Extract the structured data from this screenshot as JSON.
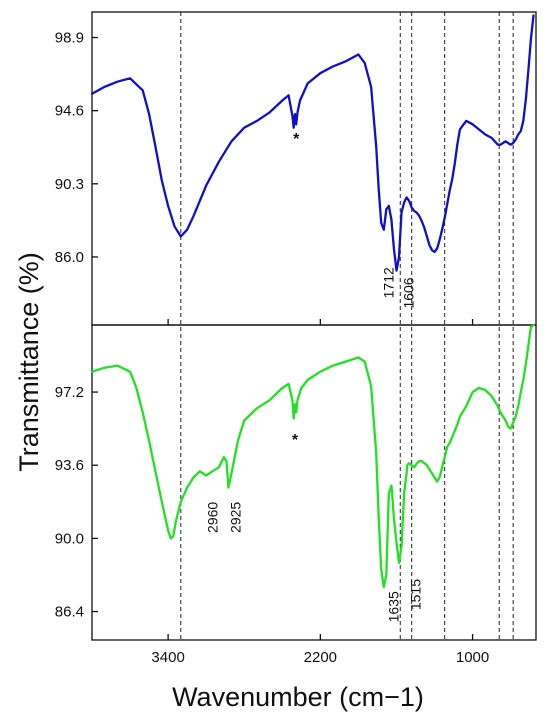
{
  "chart_data": {
    "type": "line",
    "xlabel": "Wavenumber (cm−1)",
    "ylabel": "Transmittance (%)",
    "xlim": [
      4000,
      500
    ],
    "x_ticks": [
      "3400",
      "2200",
      "1000"
    ],
    "reference_lines_x": [
      3300,
      1570,
      1480,
      1220,
      790,
      680
    ],
    "panels": [
      {
        "name": "top",
        "color": "#1010c8",
        "ylim": [
          82.0,
          100.4
        ],
        "y_ticks": [
          "98.9",
          "94.6",
          "90.3",
          "86.0"
        ],
        "x": [
          4000,
          3900,
          3800,
          3700,
          3600,
          3550,
          3500,
          3450,
          3400,
          3350,
          3300,
          3250,
          3200,
          3100,
          3000,
          2900,
          2800,
          2700,
          2600,
          2500,
          2450,
          2420,
          2410,
          2400,
          2390,
          2380,
          2360,
          2300,
          2200,
          2100,
          2000,
          1950,
          1900,
          1850,
          1800,
          1760,
          1740,
          1720,
          1700,
          1680,
          1660,
          1640,
          1620,
          1600,
          1580,
          1560,
          1540,
          1520,
          1500,
          1480,
          1460,
          1440,
          1420,
          1400,
          1380,
          1360,
          1340,
          1320,
          1300,
          1280,
          1260,
          1240,
          1220,
          1200,
          1180,
          1160,
          1140,
          1120,
          1100,
          1050,
          1000,
          950,
          900,
          850,
          800,
          780,
          760,
          740,
          720,
          700,
          680,
          660,
          640,
          620,
          600,
          580,
          560,
          540,
          520
        ],
        "y": [
          95.6,
          96.0,
          96.3,
          96.5,
          95.8,
          94.4,
          92.5,
          90.5,
          89.0,
          87.8,
          87.2,
          87.6,
          88.4,
          90.2,
          91.6,
          92.8,
          93.6,
          94.0,
          94.5,
          95.2,
          95.5,
          94.3,
          93.6,
          94.4,
          93.8,
          94.5,
          95.2,
          96.2,
          96.8,
          97.2,
          97.5,
          97.7,
          97.9,
          97.4,
          96.0,
          92.5,
          90.0,
          88.0,
          87.6,
          88.8,
          89.0,
          88.2,
          86.5,
          85.2,
          86.0,
          88.6,
          89.2,
          89.5,
          89.3,
          88.9,
          88.7,
          88.6,
          88.4,
          88.1,
          87.7,
          87.2,
          86.7,
          86.4,
          86.3,
          86.5,
          87.0,
          87.6,
          88.3,
          89.1,
          89.9,
          90.6,
          91.5,
          92.6,
          93.5,
          94.0,
          93.8,
          93.5,
          93.2,
          93.0,
          92.6,
          92.6,
          92.7,
          92.8,
          92.7,
          92.6,
          92.7,
          92.9,
          93.2,
          93.4,
          94.0,
          95.3,
          97.0,
          98.8,
          100.2
        ]
      },
      {
        "name": "bottom",
        "color": "#22e022",
        "ylim": [
          85.0,
          100.5
        ],
        "y_ticks": [
          "97.2",
          "93.6",
          "90.0",
          "86.4"
        ],
        "x": [
          4000,
          3900,
          3800,
          3700,
          3650,
          3600,
          3550,
          3500,
          3450,
          3400,
          3380,
          3360,
          3340,
          3300,
          3250,
          3200,
          3150,
          3100,
          3050,
          3000,
          2960,
          2940,
          2925,
          2900,
          2850,
          2800,
          2700,
          2600,
          2500,
          2450,
          2420,
          2410,
          2400,
          2390,
          2380,
          2350,
          2300,
          2200,
          2100,
          2000,
          1950,
          1900,
          1850,
          1800,
          1760,
          1740,
          1720,
          1700,
          1680,
          1660,
          1640,
          1635,
          1620,
          1600,
          1580,
          1560,
          1540,
          1520,
          1515,
          1500,
          1480,
          1460,
          1440,
          1420,
          1400,
          1380,
          1360,
          1340,
          1320,
          1300,
          1280,
          1260,
          1240,
          1220,
          1200,
          1180,
          1160,
          1140,
          1120,
          1100,
          1050,
          1000,
          950,
          900,
          850,
          800,
          780,
          760,
          740,
          720,
          700,
          680,
          660,
          640,
          620,
          600,
          580,
          560,
          540,
          520
        ],
        "y": [
          98.2,
          98.4,
          98.5,
          98.2,
          97.4,
          96.2,
          94.8,
          93.3,
          91.8,
          90.4,
          90.0,
          90.1,
          90.8,
          91.8,
          92.5,
          93.0,
          93.3,
          93.1,
          93.3,
          93.5,
          94.0,
          93.8,
          92.5,
          93.2,
          94.8,
          95.8,
          96.4,
          96.8,
          97.4,
          97.6,
          96.8,
          95.9,
          96.6,
          96.2,
          96.8,
          97.4,
          97.8,
          98.2,
          98.5,
          98.7,
          98.8,
          98.9,
          98.7,
          97.5,
          94.2,
          91.0,
          88.5,
          87.6,
          88.2,
          92.2,
          92.6,
          92.3,
          91.0,
          89.8,
          88.8,
          89.6,
          92.2,
          93.2,
          93.6,
          93.7,
          93.6,
          93.5,
          93.7,
          93.8,
          93.8,
          93.7,
          93.6,
          93.4,
          93.2,
          93.0,
          92.8,
          93.0,
          93.5,
          94.0,
          94.5,
          94.7,
          95.0,
          95.3,
          95.6,
          96.0,
          96.5,
          97.2,
          97.4,
          97.3,
          97.0,
          96.5,
          96.2,
          96.0,
          95.8,
          95.5,
          95.4,
          95.7,
          96.0,
          96.5,
          97.2,
          97.8,
          98.6,
          99.5,
          100.4,
          101.2
        ]
      }
    ],
    "annotations": [
      {
        "panel": 0,
        "text": "*",
        "x": 2390,
        "y": 93.0
      },
      {
        "panel": 0,
        "text": "1712",
        "x": 1625,
        "y": 85.4
      },
      {
        "panel": 0,
        "text": "1606",
        "x": 1465,
        "y": 84.8
      },
      {
        "panel": 1,
        "text": "*",
        "x": 2400,
        "y": 94.9
      },
      {
        "panel": 1,
        "text": "2960",
        "x": 3010,
        "y": 91.8
      },
      {
        "panel": 1,
        "text": "2925",
        "x": 2830,
        "y": 91.8
      },
      {
        "panel": 1,
        "text": "1635",
        "x": 1585,
        "y": 87.4
      },
      {
        "panel": 1,
        "text": "1515",
        "x": 1410,
        "y": 88.0
      }
    ]
  }
}
